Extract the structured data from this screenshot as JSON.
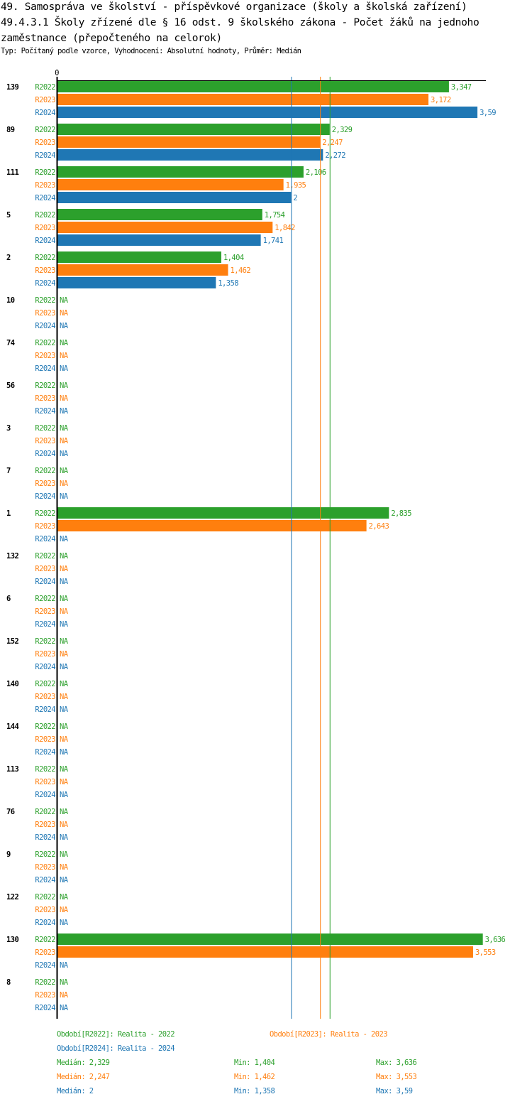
{
  "title_line1": "49. Samospráva ve školství - příspěvkové organizace (školy a školská zařízení)",
  "title_line2": "49.4.3.1 Školy zřízené dle § 16 odst. 9 školského zákona - Počet žáků na jednoho",
  "title_line3": "zaměstnance (přepočteného na celorok)",
  "subtitle": "Typ: Počítaný podle vzorce, Vyhodnocení: Absolutní hodnoty, Průměr: Medián",
  "chart_data": {
    "type": "bar",
    "orientation": "horizontal",
    "x_tick_label": "0",
    "na_label": "NA",
    "categories": [
      "139",
      "89",
      "111",
      "5",
      "2",
      "10",
      "74",
      "56",
      "3",
      "7",
      "1",
      "132",
      "6",
      "152",
      "140",
      "144",
      "113",
      "76",
      "9",
      "122",
      "130",
      "8"
    ],
    "series": [
      {
        "name": "R2022",
        "color": "#2ca02c",
        "values": [
          3.347,
          2.329,
          2.106,
          1.754,
          1.404,
          null,
          null,
          null,
          null,
          null,
          2.835,
          null,
          null,
          null,
          null,
          null,
          null,
          null,
          null,
          null,
          3.636,
          null
        ]
      },
      {
        "name": "R2023",
        "color": "#ff7f0e",
        "values": [
          3.172,
          2.247,
          1.935,
          1.842,
          1.462,
          null,
          null,
          null,
          null,
          null,
          2.643,
          null,
          null,
          null,
          null,
          null,
          null,
          null,
          null,
          null,
          3.553,
          null
        ]
      },
      {
        "name": "R2024",
        "color": "#1f77b4",
        "values": [
          3.59,
          2.272,
          2,
          1.741,
          1.358,
          null,
          null,
          null,
          null,
          null,
          null,
          null,
          null,
          null,
          null,
          null,
          null,
          null,
          null,
          null,
          null,
          null
        ]
      }
    ],
    "median_lines": [
      2.329,
      2.247,
      2
    ],
    "xlim": [
      0,
      3.66
    ]
  },
  "legend": {
    "periods": [
      "Období[R2022]: Realita - 2022",
      "Období[R2023]: Realita - 2023",
      "Období[R2024]: Realita - 2024"
    ],
    "stats": [
      {
        "median": "Medián: 2,329",
        "min": "Min: 1,404",
        "max": "Max: 3,636"
      },
      {
        "median": "Medián: 2,247",
        "min": "Min: 1,462",
        "max": "Max: 3,553"
      },
      {
        "median": "Medián: 2",
        "min": "Min: 1,358",
        "max": "Max: 3,59"
      }
    ]
  }
}
